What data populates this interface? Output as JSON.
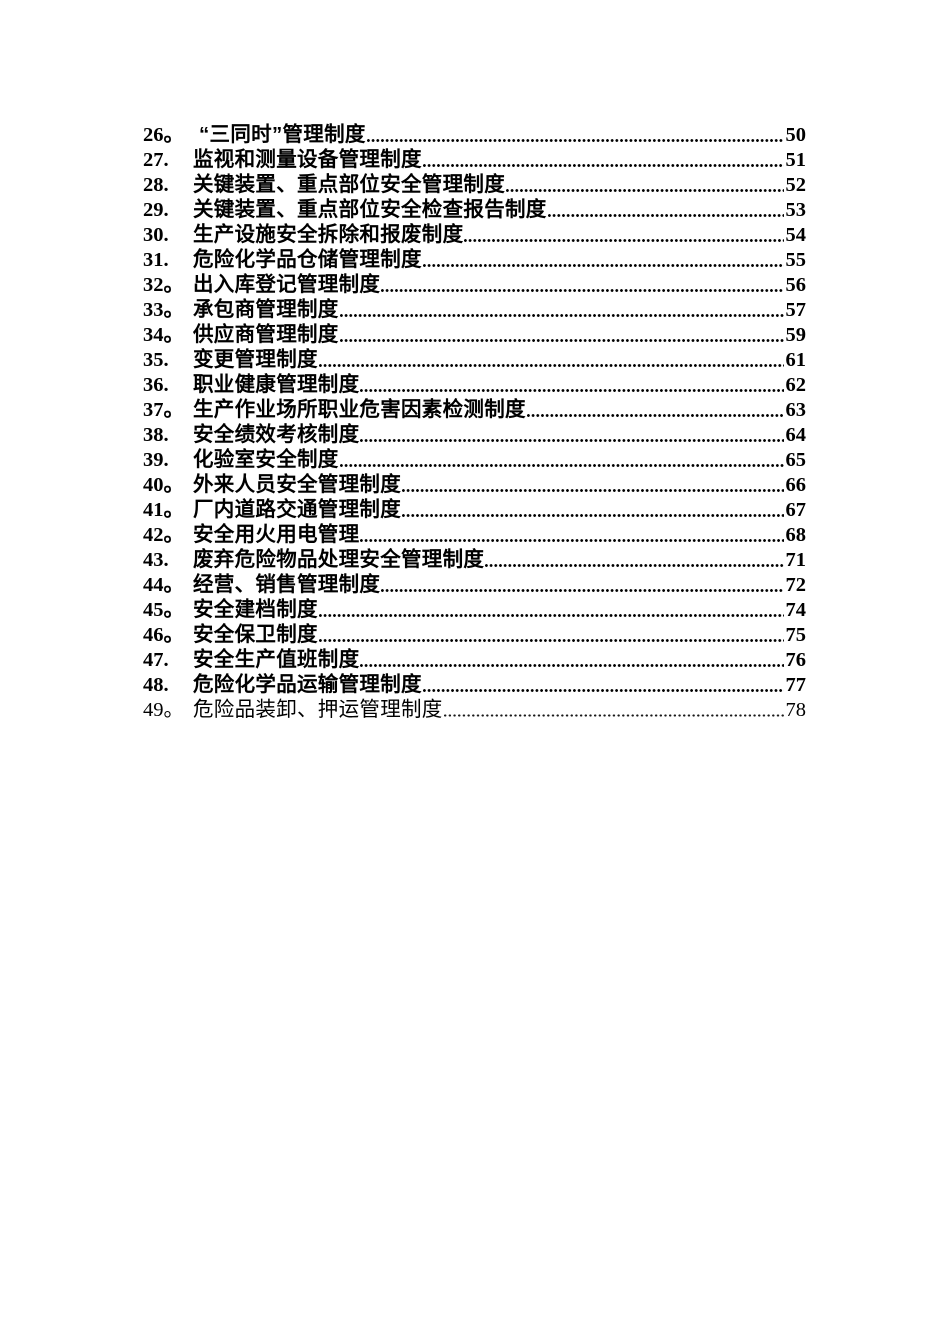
{
  "colors": {
    "text": "#000000",
    "background": "#ffffff"
  },
  "toc": {
    "entries": [
      {
        "num": "26。",
        "title": " “三同时”管理制度",
        "page": "50",
        "bold": true
      },
      {
        "num": "27.",
        "title": "监视和测量设备管理制度",
        "page": "51",
        "bold": true
      },
      {
        "num": "28.",
        "title": "关键装置、重点部位安全管理制度",
        "page": "52",
        "bold": true
      },
      {
        "num": "29.",
        "title": "关键装置、重点部位安全检查报告制度",
        "page": "53",
        "bold": true
      },
      {
        "num": "30.",
        "title": "生产设施安全拆除和报废制度",
        "page": "54",
        "bold": true
      },
      {
        "num": "31.",
        "title": "危险化学品仓储管理制度",
        "page": "55",
        "bold": true
      },
      {
        "num": "32。",
        "title": "出入库登记管理制度",
        "page": "56",
        "bold": true
      },
      {
        "num": "33。",
        "title": "承包商管理制度",
        "page": "57",
        "bold": true
      },
      {
        "num": "34。",
        "title": "供应商管理制度",
        "page": "59",
        "bold": true
      },
      {
        "num": "35.",
        "title": "变更管理制度",
        "page": "61",
        "bold": true
      },
      {
        "num": "36.",
        "title": "职业健康管理制度",
        "page": "62",
        "bold": true
      },
      {
        "num": "37。",
        "title": "生产作业场所职业危害因素检测制度",
        "page": "63",
        "bold": true
      },
      {
        "num": "38.",
        "title": "安全绩效考核制度",
        "page": "64",
        "bold": true
      },
      {
        "num": "39.",
        "title": "化验室安全制度",
        "page": "65",
        "bold": true
      },
      {
        "num": "40。",
        "title": "外来人员安全管理制度",
        "page": "66",
        "bold": true
      },
      {
        "num": "41。",
        "title": "厂内道路交通管理制度",
        "page": "67",
        "bold": true
      },
      {
        "num": "42。",
        "title": "安全用火用电管理",
        "page": "68",
        "bold": true
      },
      {
        "num": "43.",
        "title": "废弃危险物品处理安全管理制度",
        "page": "71",
        "bold": true
      },
      {
        "num": "44。",
        "title": "经营、销售管理制度",
        "page": "72",
        "bold": true
      },
      {
        "num": "45。",
        "title": "安全建档制度",
        "page": "74",
        "bold": true
      },
      {
        "num": "46。",
        "title": "安全保卫制度",
        "page": "75",
        "bold": true
      },
      {
        "num": "47.",
        "title": "安全生产值班制度",
        "page": "76",
        "bold": true
      },
      {
        "num": "48.",
        "title": "危险化学品运输管理制度",
        "page": "77",
        "bold": true
      },
      {
        "num": "49。",
        "title": "危险品装卸、押运管理制度",
        "page": "78",
        "bold": false
      }
    ]
  }
}
